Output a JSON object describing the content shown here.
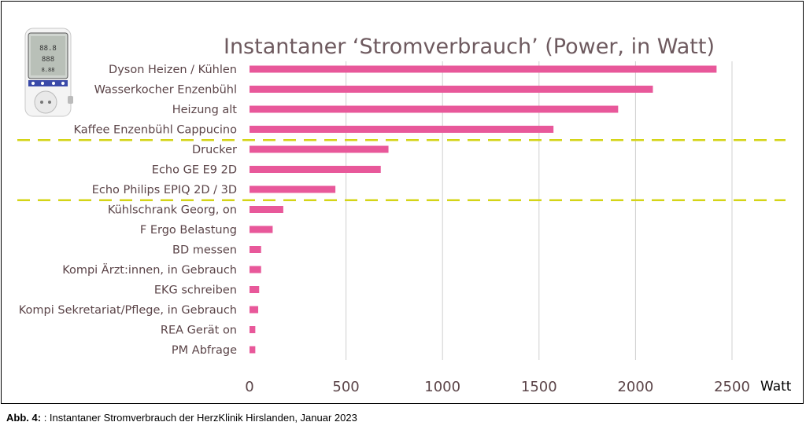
{
  "chart_data": {
    "type": "bar",
    "orientation": "horizontal",
    "title": "Instantaner ‘Stromverbrauch’ (Power, in Watt)",
    "xlabel": "Watt",
    "xlim": [
      0,
      2800
    ],
    "xticks": [
      0,
      500,
      1000,
      1500,
      2000,
      2500
    ],
    "grid": "vertical",
    "categories": [
      "Dyson Heizen / Kühlen",
      "Wasserkocher Enzenbühl",
      "Heizung alt",
      "Kaffee Enzenbühl Cappucino",
      "Drucker",
      "Echo GE E9 2D",
      "Echo Philips EPIQ 2D / 3D",
      "Kühlschrank Georg, on",
      "F Ergo Belastung",
      "BD messen",
      "Kompi Ärzt:innen, in Gebrauch",
      "EKG schreiben",
      "Kompi Sekretariat/Pflege, in Gebrauch",
      "REA Gerät on",
      "PM Abfrage"
    ],
    "values": [
      2420,
      2090,
      1910,
      1575,
      720,
      680,
      445,
      175,
      120,
      60,
      60,
      50,
      45,
      30,
      30
    ],
    "group_separators_after": [
      4,
      7
    ],
    "colors": {
      "bar": "#e8589a",
      "grid": "#d0d0d0",
      "separator": "#d4d417",
      "title": "#6e5a5f",
      "label": "#5b4448"
    }
  },
  "caption": {
    "label": "Abb. 4:",
    "text": ": Instantaner Stromverbrauch der HerzKlinik Hirslanden, Januar 2023"
  },
  "device_image": {
    "icon": "power-meter-icon"
  }
}
